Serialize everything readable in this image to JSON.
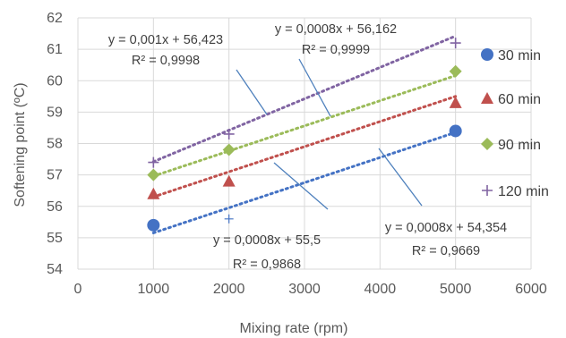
{
  "chart_data": {
    "type": "scatter",
    "title": "",
    "xlabel": "Mixing rate (rpm)",
    "ylabel": "Softening point (ºC)",
    "xlim": [
      0,
      6000
    ],
    "ylim": [
      54,
      62
    ],
    "x_ticks": [
      "0",
      "1000",
      "2000",
      "3000",
      "4000",
      "5000",
      "6000"
    ],
    "y_ticks": [
      "54",
      "55",
      "56",
      "57",
      "58",
      "59",
      "60",
      "61",
      "62"
    ],
    "grid": "both",
    "legend_position": "right",
    "series": [
      {
        "name": "30 min",
        "marker": "circle",
        "color": "#4472C4",
        "points": [
          [
            1000,
            55.4
          ],
          [
            5000,
            58.4
          ]
        ],
        "trend": {
          "slope": 0.0008,
          "intercept": 54.354,
          "equation": "y = 0,0008x + 54,354",
          "r2": "R² = 0,9669"
        }
      },
      {
        "name": "60 min",
        "marker": "triangle",
        "color": "#C0504D",
        "points": [
          [
            1000,
            56.4
          ],
          [
            2000,
            56.8
          ],
          [
            5000,
            59.3
          ]
        ],
        "trend": {
          "slope": 0.0008,
          "intercept": 55.5,
          "equation": "y = 0,0008x + 55,5",
          "r2": "R² = 0,9868"
        }
      },
      {
        "name": "90 min",
        "marker": "diamond",
        "color": "#9BBB59",
        "points": [
          [
            1000,
            57.0
          ],
          [
            2000,
            57.8
          ],
          [
            5000,
            60.3
          ]
        ],
        "trend": {
          "slope": 0.0008,
          "intercept": 56.162,
          "equation": "y = 0,0008x + 56,162",
          "r2": "R² = 0,9999"
        }
      },
      {
        "name": "120 min",
        "marker": "plus",
        "color": "#8064A2",
        "points": [
          [
            1000,
            57.4
          ],
          [
            2000,
            58.3
          ],
          [
            5000,
            61.2
          ]
        ],
        "trend": {
          "slope": 0.001,
          "intercept": 56.423,
          "equation": "y = 0,001x + 56,423",
          "r2": "R² = 0,9998"
        }
      }
    ]
  }
}
